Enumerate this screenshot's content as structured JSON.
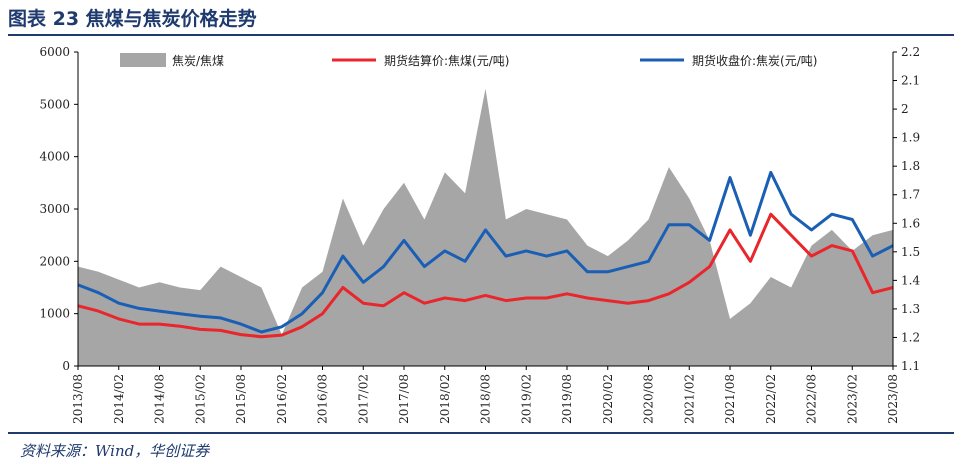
{
  "header": {
    "title": "图表 23  焦煤与焦炭价格走势"
  },
  "footer": {
    "source": "资料来源：Wind，华创证券"
  },
  "chart_data": {
    "type": "line",
    "title": "",
    "xlabel": "",
    "ylabel": "",
    "ylim_left": [
      0,
      6000
    ],
    "yticks_left": [
      0,
      1000,
      2000,
      3000,
      4000,
      5000,
      6000
    ],
    "ylim_right": [
      1.1,
      2.2
    ],
    "yticks_right": [
      "1.1",
      "1.2",
      "1.3",
      "1.4",
      "1.5",
      "1.6",
      "1.7",
      "1.8",
      "1.9",
      "2",
      "2.1",
      "2.2"
    ],
    "x_ticks": [
      "2013/08",
      "2014/02",
      "2014/08",
      "2015/02",
      "2015/08",
      "2016/02",
      "2016/08",
      "2017/02",
      "2017/08",
      "2018/02",
      "2018/08",
      "2019/02",
      "2019/08",
      "2020/02",
      "2020/08",
      "2021/02",
      "2021/08",
      "2022/02",
      "2022/08",
      "2023/02",
      "2023/08"
    ],
    "legend_position": "top",
    "grid": false,
    "x": [
      "2013/08",
      "2013/11",
      "2014/02",
      "2014/05",
      "2014/08",
      "2014/11",
      "2015/02",
      "2015/05",
      "2015/08",
      "2015/11",
      "2016/02",
      "2016/05",
      "2016/08",
      "2016/11",
      "2017/02",
      "2017/05",
      "2017/08",
      "2017/11",
      "2018/02",
      "2018/05",
      "2018/08",
      "2018/11",
      "2019/02",
      "2019/05",
      "2019/08",
      "2019/11",
      "2020/02",
      "2020/05",
      "2020/08",
      "2020/11",
      "2021/02",
      "2021/05",
      "2021/08",
      "2021/11",
      "2022/02",
      "2022/05",
      "2022/08",
      "2022/11",
      "2023/02",
      "2023/05",
      "2023/08"
    ],
    "series": [
      {
        "name": "焦炭/焦煤",
        "axis": "left",
        "kind": "area",
        "color": "#a6a6a6",
        "values": [
          1900,
          1800,
          1650,
          1500,
          1600,
          1500,
          1450,
          1900,
          1700,
          1500,
          600,
          1500,
          1800,
          3200,
          2300,
          3000,
          3500,
          2800,
          3700,
          3300,
          5300,
          2800,
          3000,
          2900,
          2800,
          2300,
          2100,
          2400,
          2800,
          3800,
          3200,
          2400,
          900,
          1200,
          1700,
          1500,
          2300,
          2600,
          2200,
          2500,
          2600
        ]
      },
      {
        "name": "期货结算价:焦煤(元/吨)",
        "axis": "left",
        "kind": "line",
        "color": "#e8262b",
        "values": [
          1150,
          1050,
          900,
          800,
          800,
          760,
          700,
          680,
          600,
          560,
          590,
          750,
          1000,
          1500,
          1200,
          1150,
          1400,
          1200,
          1300,
          1250,
          1350,
          1250,
          1300,
          1300,
          1380,
          1300,
          1250,
          1200,
          1250,
          1380,
          1600,
          1900,
          2600,
          2000,
          2900,
          2500,
          2100,
          2300,
          2200,
          1400,
          1500
        ]
      },
      {
        "name": "期货收盘价:焦炭(元/吨)",
        "axis": "left",
        "kind": "line",
        "color": "#1a5fb4",
        "values": [
          1550,
          1400,
          1200,
          1100,
          1050,
          1000,
          950,
          920,
          800,
          650,
          750,
          1000,
          1400,
          2100,
          1600,
          1900,
          2400,
          1900,
          2200,
          2000,
          2600,
          2100,
          2200,
          2100,
          2200,
          1800,
          1800,
          1900,
          2000,
          2700,
          2700,
          2400,
          3600,
          2500,
          3700,
          2900,
          2600,
          2900,
          2800,
          2100,
          2300
        ]
      }
    ]
  }
}
